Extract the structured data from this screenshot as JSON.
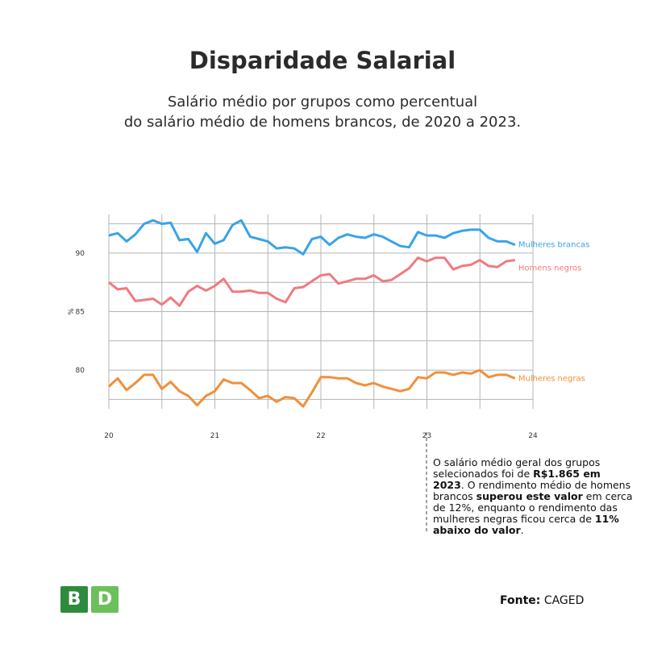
{
  "title": "Disparidade Salarial",
  "subtitle_line1": "Salário médio por grupos como percentual",
  "subtitle_line2": "do salário médio de homens brancos, de 2020 a 2023.",
  "colors": {
    "mulheres_brancas": "#3aa3e8",
    "homens_negros": "#f07a80",
    "mulheres_negras": "#f0903a",
    "grid": "#b4b4b4"
  },
  "chart_data": {
    "type": "line",
    "xlabel": "",
    "ylabel": "%",
    "xlim": [
      20,
      24
    ],
    "ylim": [
      76.7,
      93.3
    ],
    "xticks": [
      "20",
      "21",
      "22",
      "23",
      "24"
    ],
    "yticks": [
      "80",
      "85",
      "90"
    ],
    "grid": true,
    "legend": "inline-right",
    "x_start": 20,
    "x_step": 0.0833,
    "series": [
      {
        "name": "Mulheres brancas",
        "values": [
          91.5,
          91.7,
          91.0,
          91.6,
          92.5,
          92.8,
          92.5,
          92.6,
          91.1,
          91.2,
          90.1,
          91.7,
          90.8,
          91.1,
          92.4,
          92.8,
          91.4,
          91.2,
          91.0,
          90.4,
          90.5,
          90.4,
          89.9,
          91.2,
          91.4,
          90.7,
          91.3,
          91.6,
          91.4,
          91.3,
          91.6,
          91.4,
          91.0,
          90.6,
          90.5,
          91.8,
          91.5,
          91.5,
          91.3,
          91.7,
          91.9,
          92.0,
          92.0,
          91.3,
          91.0,
          91.0,
          90.7
        ]
      },
      {
        "name": "Homens negros",
        "values": [
          87.5,
          86.9,
          87.0,
          85.9,
          86.0,
          86.1,
          85.6,
          86.2,
          85.5,
          86.7,
          87.2,
          86.8,
          87.2,
          87.8,
          86.7,
          86.7,
          86.8,
          86.6,
          86.6,
          86.1,
          85.8,
          87.0,
          87.1,
          87.6,
          88.1,
          88.2,
          87.4,
          87.6,
          87.8,
          87.8,
          88.1,
          87.6,
          87.7,
          88.2,
          88.7,
          89.6,
          89.3,
          89.6,
          89.6,
          88.6,
          88.9,
          89.0,
          89.4,
          88.9,
          88.8,
          89.3,
          89.4
        ]
      },
      {
        "name": "Mulheres negras",
        "values": [
          78.6,
          79.3,
          78.3,
          78.9,
          79.6,
          79.6,
          78.4,
          79.0,
          78.2,
          77.8,
          77.0,
          77.8,
          78.2,
          79.2,
          78.9,
          78.9,
          78.3,
          77.6,
          77.8,
          77.3,
          77.7,
          77.6,
          76.9,
          78.1,
          79.4,
          79.4,
          79.3,
          79.3,
          78.9,
          78.7,
          78.9,
          78.6,
          78.4,
          78.2,
          78.4,
          79.4,
          79.3,
          79.8,
          79.8,
          79.6,
          79.8,
          79.7,
          80.0,
          79.4,
          79.6,
          79.6,
          79.3
        ]
      }
    ]
  },
  "note": {
    "t1": "O salário médio geral dos grupos selecionados foi de ",
    "b1": "R$1.865 em 2023",
    "t2": ". O rendimento médio de homens brancos ",
    "b2": "superou este valor",
    "t3": " em cerca de 12%, enquanto o rendimento das mulheres negras ficou cerca de ",
    "b3": "11% abaixo do valor",
    "t4": "."
  },
  "logo": {
    "b": "B",
    "d": "D"
  },
  "source": {
    "label": "Fonte:",
    "value": " CAGED"
  }
}
